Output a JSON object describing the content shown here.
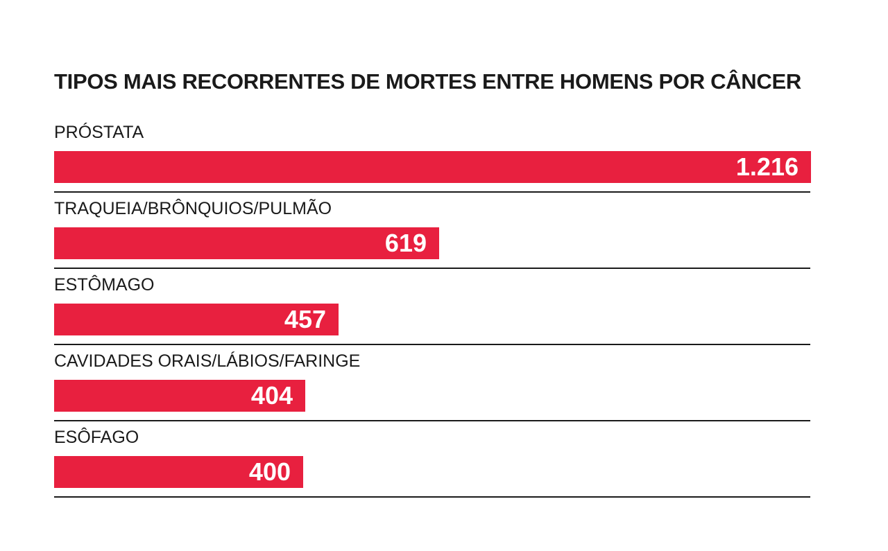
{
  "chart_data": {
    "type": "bar",
    "orientation": "horizontal",
    "title": "TIPOS MAIS RECORRENTES DE MORTES ENTRE HOMENS POR CÂNCER",
    "categories": [
      "PRÓSTATA",
      "TRAQUEIA/BRÔNQUIOS/PULMÃO",
      "ESTÔMAGO",
      "CAVIDADES ORAIS/LÁBIOS/FARINGE",
      "ESÔFAGO"
    ],
    "values": [
      1216,
      619,
      457,
      404,
      400
    ],
    "value_labels": [
      "1.216",
      "619",
      "457",
      "404",
      "400"
    ],
    "xlim": [
      0,
      1216
    ],
    "grid": false,
    "colors": {
      "bar": "#e8203f",
      "value_text": "#ffffff",
      "text": "#1a1a1a",
      "divider": "#1a1a1a"
    }
  }
}
